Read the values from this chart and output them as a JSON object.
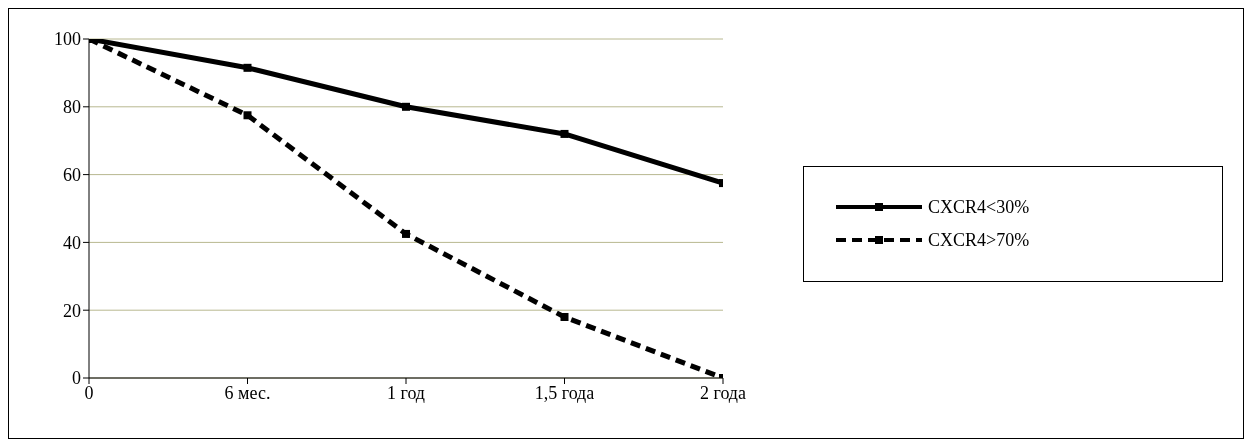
{
  "chart_data": {
    "type": "line",
    "categories": [
      "0",
      "6 мес.",
      "1 год",
      "1,5 года",
      "2 года"
    ],
    "series": [
      {
        "name": "CXCR4<30%",
        "color": "#000000",
        "line_style": "solid",
        "values": [
          100,
          91.5,
          80,
          72,
          57.5
        ]
      },
      {
        "name": "CXCR4>70%",
        "color": "#000000",
        "line_style": "dashed",
        "values": [
          100,
          77.5,
          42.5,
          18,
          0
        ]
      }
    ],
    "ylim": [
      0,
      100
    ],
    "yticks": [
      0,
      20,
      40,
      60,
      80,
      100
    ],
    "grid": "y",
    "legend": "right",
    "marker": "square"
  }
}
